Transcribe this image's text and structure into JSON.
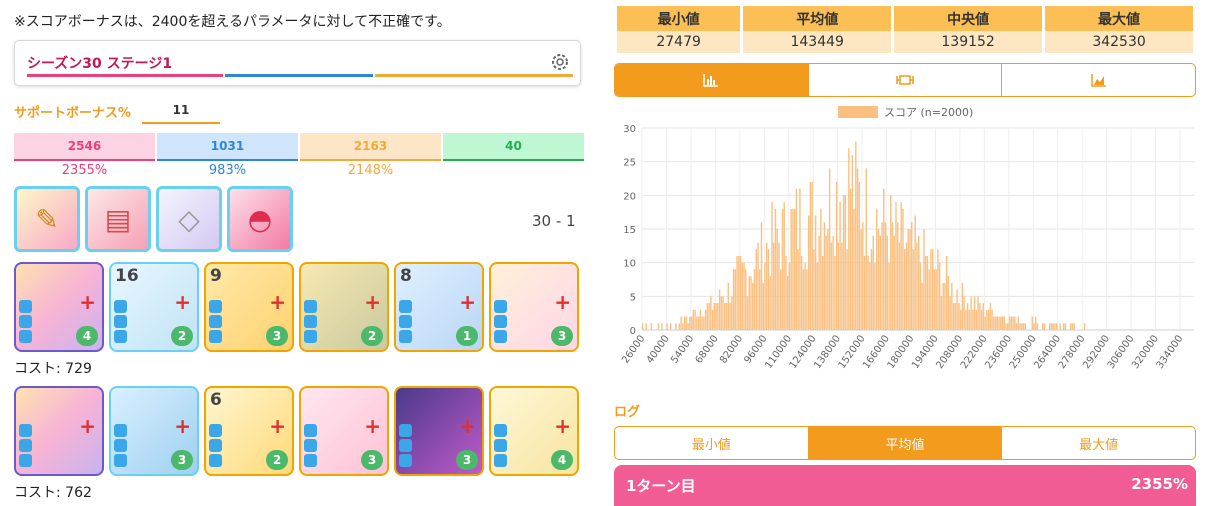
{
  "note": "※スコアボーナスは、2400を超えるパラメータに対して不正確です。",
  "stage": {
    "title": "シーズン30 ステージ1",
    "icon": "gear-icon"
  },
  "support_bonus": {
    "label": "サポートボーナス%",
    "value": "11"
  },
  "params": [
    {
      "value": "2546",
      "pct": "2355%",
      "color": "#e8417d",
      "bg": "#fbd3e2"
    },
    {
      "value": "1031",
      "pct": "983%",
      "color": "#2f86d8",
      "bg": "#cfe5fb"
    },
    {
      "value": "2163",
      "pct": "2148%",
      "color": "#f2a93b",
      "bg": "#fde6c7"
    },
    {
      "value": "40",
      "pct": "",
      "color": "#22b14c",
      "bg": "#bff7d4"
    }
  ],
  "stage_code": "30 - 1",
  "memory_cards": [
    "wand-item-icon",
    "ramen-bag-item-icon",
    "handkerchief-item-icon",
    "red-cap-item-icon"
  ],
  "decks": [
    {
      "cost_label": "コスト: 729",
      "cards": [
        {
          "name": "idol-portrait-card",
          "badge": "",
          "level": "4"
        },
        {
          "name": "goose-skill-card",
          "badge": "16",
          "level": "2"
        },
        {
          "name": "film-skill-card",
          "badge": "9",
          "level": "3"
        },
        {
          "name": "star-skill-card",
          "badge": "",
          "level": "2"
        },
        {
          "name": "audience-skill-card",
          "badge": "8",
          "level": "1"
        },
        {
          "name": "hands-skill-card",
          "badge": "",
          "level": "3"
        }
      ]
    },
    {
      "cost_label": "コスト: 762",
      "cards": [
        {
          "name": "idol-portrait-card",
          "badge": "",
          "level": ""
        },
        {
          "name": "stage-duo-skill-card",
          "badge": "",
          "level": "3"
        },
        {
          "name": "chart-skill-card",
          "badge": "6",
          "level": "2"
        },
        {
          "name": "wheel-skill-card",
          "badge": "",
          "level": "3"
        },
        {
          "name": "concert-skill-card",
          "badge": "",
          "level": "3"
        },
        {
          "name": "feather-skill-card",
          "badge": "",
          "level": "4"
        }
      ]
    }
  ],
  "stats": {
    "headers": [
      "最小値",
      "平均値",
      "中央値",
      "最大値"
    ],
    "values": [
      "27479",
      "143449",
      "139152",
      "342530"
    ]
  },
  "chart_tabs": [
    {
      "icon": "bar-chart-icon",
      "active": true
    },
    {
      "icon": "box-plot-icon",
      "active": false
    },
    {
      "icon": "area-chart-icon",
      "active": false
    }
  ],
  "log": {
    "label": "ログ",
    "tabs": [
      "最小値",
      "平均値",
      "最大値"
    ],
    "active_tab": 1
  },
  "turn": {
    "label": "1ターン目",
    "value": "2355%"
  },
  "chart_data": {
    "type": "bar",
    "legend": "スコア (n=2000)",
    "color": "#fbbf80",
    "ylim": [
      0,
      30
    ],
    "yticks": [
      0,
      5,
      10,
      15,
      20,
      25,
      30
    ],
    "xticks": [
      "26000",
      "40000",
      "54000",
      "68000",
      "82000",
      "96000",
      "110000",
      "124000",
      "138000",
      "152000",
      "166000",
      "180000",
      "194000",
      "208000",
      "222000",
      "236000",
      "250000",
      "264000",
      "278000",
      "292000",
      "306000",
      "320000",
      "334000"
    ],
    "grid": true,
    "x_range": [
      26000,
      342000
    ],
    "bin_width": 1000,
    "profile_x": [
      26000,
      40000,
      54000,
      68000,
      82000,
      96000,
      110000,
      124000,
      138000,
      145000,
      152000,
      166000,
      180000,
      194000,
      208000,
      222000,
      236000,
      250000,
      264000,
      278000,
      292000,
      306000,
      320000,
      342000
    ],
    "profile_y": [
      0.7,
      1,
      2,
      4,
      8,
      12,
      15,
      17,
      20,
      22,
      18,
      15,
      12,
      9,
      5,
      3,
      2,
      1.2,
      0.8,
      0.5,
      0.3,
      0.2,
      0.2,
      0.2
    ]
  }
}
